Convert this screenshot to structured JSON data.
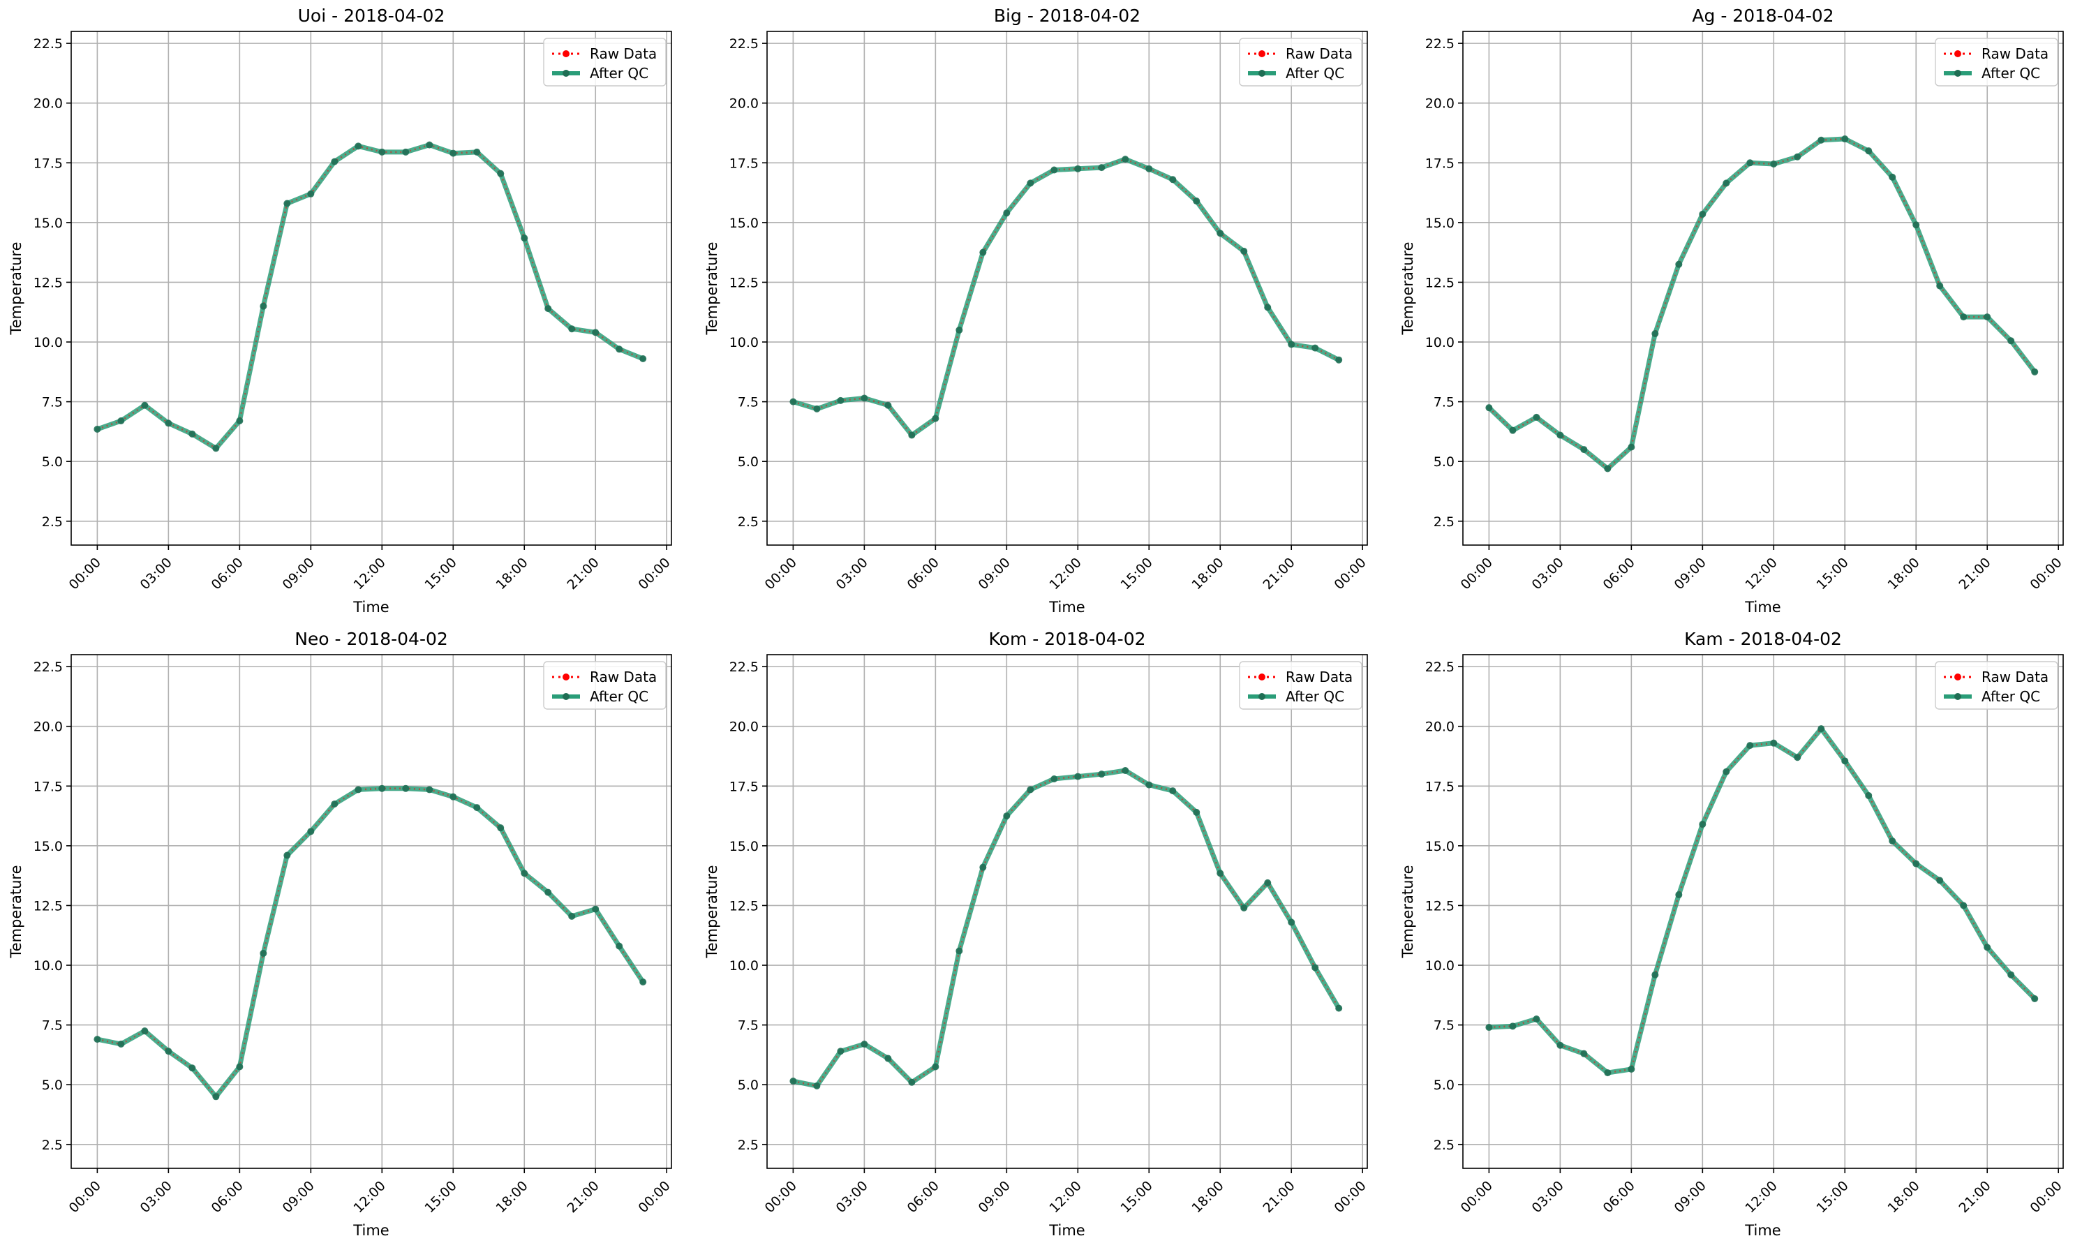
{
  "legend": {
    "raw": "Raw Data",
    "qc": "After QC"
  },
  "colors": {
    "raw": "#ff0000",
    "qc": "#2a9d78",
    "grid": "#b0b0b0"
  },
  "chart_data": [
    {
      "type": "line",
      "title": "Uoi - 2018-04-02",
      "xlabel": "Time",
      "ylabel": "Temperature",
      "ylim": [
        1.5,
        23.0
      ],
      "yticks": [
        2.5,
        5.0,
        7.5,
        10.0,
        12.5,
        15.0,
        17.5,
        20.0,
        22.5
      ],
      "xlim_hours": [
        -1.1,
        24.2
      ],
      "xticks": [
        "00:00",
        "03:00",
        "06:00",
        "09:00",
        "12:00",
        "15:00",
        "18:00",
        "21:00",
        "00:00"
      ],
      "x_hours": [
        0,
        1,
        2,
        3,
        4,
        5,
        6,
        7,
        8,
        9,
        10,
        11,
        12,
        13,
        14,
        15,
        16,
        17,
        18,
        19,
        20,
        21,
        22,
        23
      ],
      "series": [
        {
          "name": "Raw Data",
          "values": [
            6.35,
            6.7,
            7.35,
            6.6,
            6.15,
            5.55,
            6.7,
            11.5,
            15.8,
            16.2,
            17.55,
            18.2,
            17.95,
            17.95,
            18.25,
            17.9,
            17.95,
            17.05,
            14.35,
            11.4,
            10.55,
            10.4,
            9.7,
            9.3
          ]
        },
        {
          "name": "After QC",
          "values": [
            6.35,
            6.7,
            7.35,
            6.6,
            6.15,
            5.55,
            6.7,
            11.5,
            15.8,
            16.2,
            17.55,
            18.2,
            17.95,
            17.95,
            18.25,
            17.9,
            17.95,
            17.05,
            14.35,
            11.4,
            10.55,
            10.4,
            9.7,
            9.3
          ]
        }
      ]
    },
    {
      "type": "line",
      "title": "Big - 2018-04-02",
      "xlabel": "Time",
      "ylabel": "Temperature",
      "ylim": [
        1.5,
        23.0
      ],
      "yticks": [
        2.5,
        5.0,
        7.5,
        10.0,
        12.5,
        15.0,
        17.5,
        20.0,
        22.5
      ],
      "xlim_hours": [
        -1.1,
        24.2
      ],
      "xticks": [
        "00:00",
        "03:00",
        "06:00",
        "09:00",
        "12:00",
        "15:00",
        "18:00",
        "21:00",
        "00:00"
      ],
      "x_hours": [
        0,
        1,
        2,
        3,
        4,
        5,
        6,
        7,
        8,
        9,
        10,
        11,
        12,
        13,
        14,
        15,
        16,
        17,
        18,
        19,
        20,
        21,
        22,
        23
      ],
      "series": [
        {
          "name": "Raw Data",
          "values": [
            7.5,
            7.2,
            7.55,
            7.65,
            7.35,
            6.1,
            6.8,
            10.5,
            13.75,
            15.4,
            16.65,
            17.2,
            17.25,
            17.3,
            17.65,
            17.25,
            16.8,
            15.9,
            14.55,
            13.8,
            11.45,
            9.9,
            9.75,
            9.25
          ]
        },
        {
          "name": "After QC",
          "values": [
            7.5,
            7.2,
            7.55,
            7.65,
            7.35,
            6.1,
            6.8,
            10.5,
            13.75,
            15.4,
            16.65,
            17.2,
            17.25,
            17.3,
            17.65,
            17.25,
            16.8,
            15.9,
            14.55,
            13.8,
            11.45,
            9.9,
            9.75,
            9.25
          ]
        }
      ]
    },
    {
      "type": "line",
      "title": "Ag - 2018-04-02",
      "xlabel": "Time",
      "ylabel": "Temperature",
      "ylim": [
        1.5,
        23.0
      ],
      "yticks": [
        2.5,
        5.0,
        7.5,
        10.0,
        12.5,
        15.0,
        17.5,
        20.0,
        22.5
      ],
      "xlim_hours": [
        -1.1,
        24.2
      ],
      "xticks": [
        "00:00",
        "03:00",
        "06:00",
        "09:00",
        "12:00",
        "15:00",
        "18:00",
        "21:00",
        "00:00"
      ],
      "x_hours": [
        0,
        1,
        2,
        3,
        4,
        5,
        6,
        7,
        8,
        9,
        10,
        11,
        12,
        13,
        14,
        15,
        16,
        17,
        18,
        19,
        20,
        21,
        22,
        23
      ],
      "series": [
        {
          "name": "Raw Data",
          "values": [
            7.25,
            6.3,
            6.85,
            6.1,
            5.5,
            4.7,
            5.6,
            10.35,
            13.25,
            15.35,
            16.65,
            17.5,
            17.45,
            17.75,
            18.45,
            18.5,
            18.0,
            16.9,
            14.9,
            12.35,
            11.05,
            11.05,
            10.05,
            8.75
          ]
        },
        {
          "name": "After QC",
          "values": [
            7.25,
            6.3,
            6.85,
            6.1,
            5.5,
            4.7,
            5.6,
            10.35,
            13.25,
            15.35,
            16.65,
            17.5,
            17.45,
            17.75,
            18.45,
            18.5,
            18.0,
            16.9,
            14.9,
            12.35,
            11.05,
            11.05,
            10.05,
            8.75
          ]
        }
      ]
    },
    {
      "type": "line",
      "title": "Neo - 2018-04-02",
      "xlabel": "Time",
      "ylabel": "Temperature",
      "ylim": [
        1.5,
        23.0
      ],
      "yticks": [
        2.5,
        5.0,
        7.5,
        10.0,
        12.5,
        15.0,
        17.5,
        20.0,
        22.5
      ],
      "xlim_hours": [
        -1.1,
        24.2
      ],
      "xticks": [
        "00:00",
        "03:00",
        "06:00",
        "09:00",
        "12:00",
        "15:00",
        "18:00",
        "21:00",
        "00:00"
      ],
      "x_hours": [
        0,
        1,
        2,
        3,
        4,
        5,
        6,
        7,
        8,
        9,
        10,
        11,
        12,
        13,
        14,
        15,
        16,
        17,
        18,
        19,
        20,
        21,
        22,
        23
      ],
      "series": [
        {
          "name": "Raw Data",
          "values": [
            6.9,
            6.7,
            7.25,
            6.4,
            5.7,
            4.5,
            5.75,
            10.5,
            14.6,
            15.6,
            16.75,
            17.35,
            17.4,
            17.4,
            17.35,
            17.05,
            16.6,
            15.75,
            13.85,
            13.05,
            12.05,
            12.35,
            10.8,
            9.3
          ]
        },
        {
          "name": "After QC",
          "values": [
            6.9,
            6.7,
            7.25,
            6.4,
            5.7,
            4.5,
            5.75,
            10.5,
            14.6,
            15.6,
            16.75,
            17.35,
            17.4,
            17.4,
            17.35,
            17.05,
            16.6,
            15.75,
            13.85,
            13.05,
            12.05,
            12.35,
            10.8,
            9.3
          ]
        }
      ]
    },
    {
      "type": "line",
      "title": "Kom - 2018-04-02",
      "xlabel": "Time",
      "ylabel": "Temperature",
      "ylim": [
        1.5,
        23.0
      ],
      "yticks": [
        2.5,
        5.0,
        7.5,
        10.0,
        12.5,
        15.0,
        17.5,
        20.0,
        22.5
      ],
      "xlim_hours": [
        -1.1,
        24.2
      ],
      "xticks": [
        "00:00",
        "03:00",
        "06:00",
        "09:00",
        "12:00",
        "15:00",
        "18:00",
        "21:00",
        "00:00"
      ],
      "x_hours": [
        0,
        1,
        2,
        3,
        4,
        5,
        6,
        7,
        8,
        9,
        10,
        11,
        12,
        13,
        14,
        15,
        16,
        17,
        18,
        19,
        20,
        21,
        22,
        23
      ],
      "series": [
        {
          "name": "Raw Data",
          "values": [
            5.15,
            4.95,
            6.4,
            6.7,
            6.1,
            5.1,
            5.75,
            10.6,
            14.1,
            16.25,
            17.35,
            17.8,
            17.9,
            18.0,
            18.15,
            17.55,
            17.3,
            16.4,
            13.85,
            12.4,
            13.45,
            11.8,
            9.9,
            8.2
          ]
        },
        {
          "name": "After QC",
          "values": [
            5.15,
            4.95,
            6.4,
            6.7,
            6.1,
            5.1,
            5.75,
            10.6,
            14.1,
            16.25,
            17.35,
            17.8,
            17.9,
            18.0,
            18.15,
            17.55,
            17.3,
            16.4,
            13.85,
            12.4,
            13.45,
            11.8,
            9.9,
            8.2
          ]
        }
      ]
    },
    {
      "type": "line",
      "title": "Kam - 2018-04-02",
      "xlabel": "Time",
      "ylabel": "Temperature",
      "ylim": [
        1.5,
        23.0
      ],
      "yticks": [
        2.5,
        5.0,
        7.5,
        10.0,
        12.5,
        15.0,
        17.5,
        20.0,
        22.5
      ],
      "xlim_hours": [
        -1.1,
        24.2
      ],
      "xticks": [
        "00:00",
        "03:00",
        "06:00",
        "09:00",
        "12:00",
        "15:00",
        "18:00",
        "21:00",
        "00:00"
      ],
      "x_hours": [
        0,
        1,
        2,
        3,
        4,
        5,
        6,
        7,
        8,
        9,
        10,
        11,
        12,
        13,
        14,
        15,
        16,
        17,
        18,
        19,
        20,
        21,
        22,
        23
      ],
      "series": [
        {
          "name": "Raw Data",
          "values": [
            7.4,
            7.45,
            7.75,
            6.65,
            6.3,
            5.5,
            5.65,
            9.6,
            12.95,
            15.9,
            18.1,
            19.2,
            19.3,
            18.7,
            19.9,
            18.55,
            17.1,
            15.2,
            14.25,
            13.55,
            12.5,
            10.75,
            9.6,
            8.6
          ]
        },
        {
          "name": "After QC",
          "values": [
            7.4,
            7.45,
            7.75,
            6.65,
            6.3,
            5.5,
            5.65,
            9.6,
            12.95,
            15.9,
            18.1,
            19.2,
            19.3,
            18.7,
            19.9,
            18.55,
            17.1,
            15.2,
            14.25,
            13.55,
            12.5,
            10.75,
            9.6,
            8.6
          ]
        }
      ]
    }
  ]
}
